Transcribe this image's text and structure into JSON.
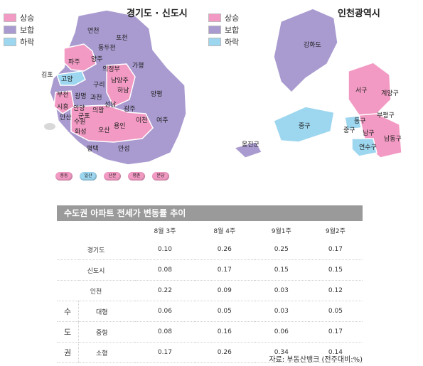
{
  "colors": {
    "rise": "#f29ac3",
    "flat": "#a99bd0",
    "fall": "#9dd6ef",
    "header": "#9a9a9a"
  },
  "legend": [
    {
      "key": "rise",
      "label": "상승"
    },
    {
      "key": "flat",
      "label": "보합"
    },
    {
      "key": "fall",
      "label": "하락"
    }
  ],
  "left_map": {
    "title": "경기도 · 신도시",
    "labels": [
      "연천",
      "포천",
      "동두천",
      "파주",
      "양주",
      "의정부",
      "가평",
      "김포",
      "고양",
      "남양주",
      "구리",
      "부천",
      "광명",
      "과천",
      "하남",
      "양평",
      "시흥",
      "안양",
      "의왕",
      "성남",
      "광주",
      "안산",
      "군포",
      "수원",
      "용인",
      "이천",
      "여주",
      "화성",
      "오산",
      "평택",
      "안성"
    ],
    "new_towns": [
      "중동",
      "일산",
      "산본",
      "평촌",
      "분당"
    ]
  },
  "right_map": {
    "title": "인천광역시",
    "labels": [
      "강화도",
      "서구",
      "계양구",
      "부평구",
      "동구",
      "중구",
      "중구",
      "남구",
      "남동구",
      "연수구",
      "옹진군"
    ]
  },
  "chart_data": {
    "type": "table",
    "title": "수도권 아파트 전세가 변동률 추이",
    "columns": [
      "8월 3주",
      "8월 4주",
      "9월1주",
      "9월2주"
    ],
    "rows": [
      {
        "label": "경기도",
        "values": [
          "0.10",
          "0.26",
          "0.25",
          "0.17"
        ]
      },
      {
        "label": "신도시",
        "values": [
          "0.08",
          "0.17",
          "0.15",
          "0.15"
        ]
      },
      {
        "label": "인천",
        "values": [
          "0.22",
          "0.09",
          "0.03",
          "0.12"
        ]
      }
    ],
    "group": {
      "label_chars": [
        "수",
        "도",
        "권"
      ],
      "rows": [
        {
          "label": "대형",
          "values": [
            "0.06",
            "0.05",
            "0.03",
            "0.05"
          ]
        },
        {
          "label": "중형",
          "values": [
            "0.08",
            "0.16",
            "0.06",
            "0.17"
          ]
        },
        {
          "label": "소형",
          "values": [
            "0.17",
            "0.26",
            "0.34",
            "0.14"
          ]
        }
      ]
    },
    "source": "자료: 부동산뱅크 (전주대비:%)"
  }
}
